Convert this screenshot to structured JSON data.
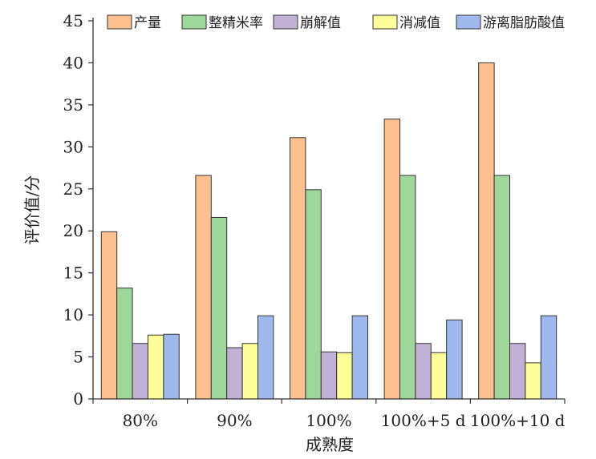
{
  "chart_data": {
    "type": "bar",
    "xlabel": "成熟度",
    "ylabel": "评价值/分",
    "ylim": [
      0,
      45
    ],
    "yticks": [
      0,
      5,
      10,
      15,
      20,
      25,
      30,
      35,
      40,
      45
    ],
    "grid": false,
    "legend_position": "top",
    "categories": [
      "80%",
      "90%",
      "100%",
      "100%+5 d",
      "100%+10 d"
    ],
    "series": [
      {
        "name": "产量",
        "color": "#FDC08E",
        "values": [
          19.9,
          26.6,
          31.1,
          33.3,
          40.0
        ]
      },
      {
        "name": "整精米率",
        "color": "#9DD79A",
        "values": [
          13.2,
          21.6,
          24.9,
          26.6,
          26.6
        ]
      },
      {
        "name": "崩解值",
        "color": "#C2B1D7",
        "values": [
          6.6,
          6.1,
          5.6,
          6.6,
          6.6
        ]
      },
      {
        "name": "消减值",
        "color": "#FFFF99",
        "values": [
          7.6,
          6.6,
          5.5,
          5.5,
          4.3
        ]
      },
      {
        "name": "游离脂肪酸值",
        "color": "#9FB8EE",
        "values": [
          7.7,
          9.9,
          9.9,
          9.4,
          9.9
        ]
      }
    ]
  }
}
